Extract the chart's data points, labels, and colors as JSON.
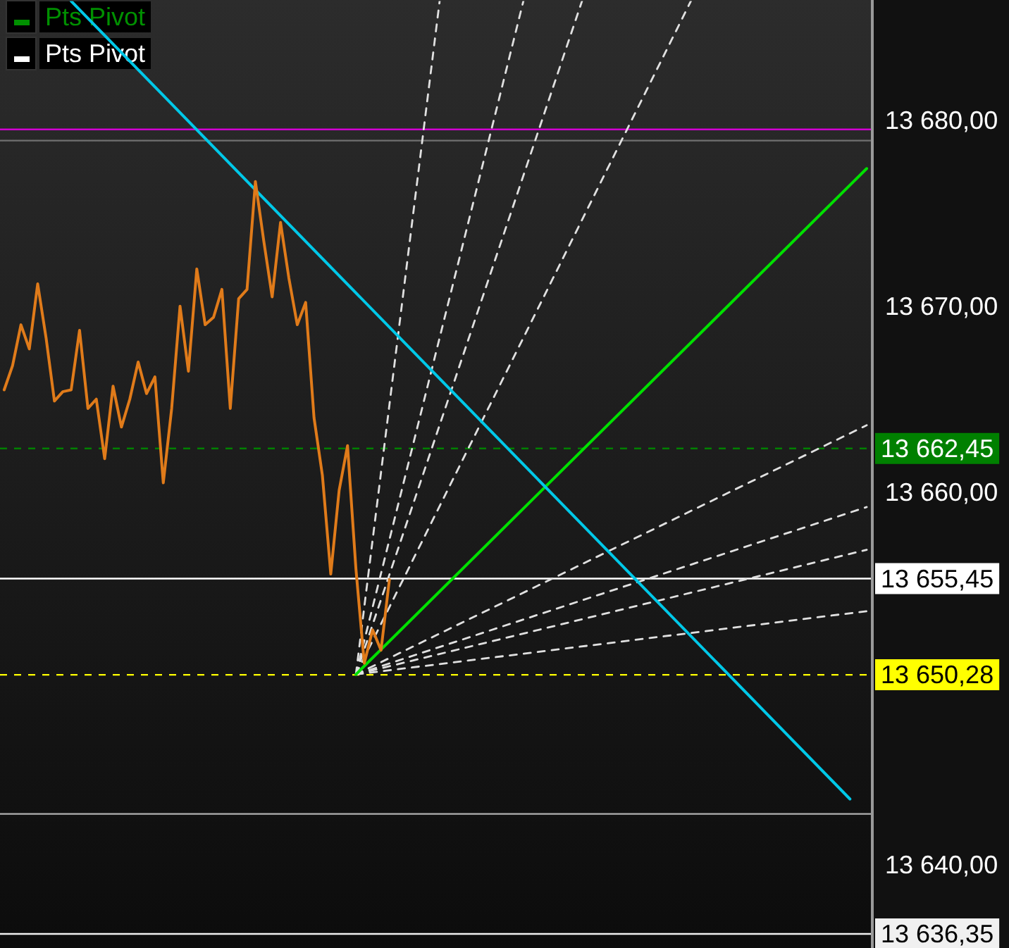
{
  "chart_data": {
    "type": "line",
    "tick_labels": "y",
    "legend": false,
    "grid": false,
    "marker": "none",
    "annotations": [
      "Pts Pivot",
      "Pts Pivot"
    ],
    "categories": [
      null,
      null,
      null,
      null,
      null,
      null,
      null,
      null,
      null,
      null,
      null,
      null,
      null,
      null,
      null,
      null,
      null,
      null,
      null,
      null,
      null,
      null,
      null,
      null,
      null,
      null,
      null,
      null,
      null,
      null,
      null,
      null,
      null,
      null,
      null,
      null,
      null,
      null,
      null,
      null,
      null,
      null,
      null,
      null,
      null,
      null,
      null,
      null,
      null,
      null,
      null,
      null,
      null,
      null,
      null,
      null,
      null,
      null,
      null,
      null,
      null,
      null,
      null,
      null,
      null,
      null,
      null,
      null,
      null,
      null,
      null,
      null,
      null,
      null,
      null,
      null,
      null,
      null,
      null,
      null,
      null,
      null,
      null,
      null,
      null,
      null,
      null,
      null,
      null,
      null,
      null,
      null,
      null,
      null,
      null,
      null,
      null,
      null,
      null,
      null,
      null,
      null,
      null,
      null
    ],
    "ylim": [
      13635.5,
      13686.5
    ],
    "yticks": [
      {
        "value": 13680,
        "label": "13 680,00"
      },
      {
        "value": 13670,
        "label": "13 670,00"
      },
      {
        "value": 13660,
        "label": "13 660,00"
      },
      {
        "value": 13650,
        "label": null
      },
      {
        "value": 13640,
        "label": "13 640,00"
      }
    ],
    "ref_lines": [
      {
        "axis": "y",
        "value": 13679.6,
        "label": null,
        "color": "#d000d0",
        "line_style": "solid"
      },
      {
        "axis": "y",
        "value": 13679.0,
        "label": null,
        "color": "#707070",
        "line_style": "solid"
      },
      {
        "axis": "y",
        "value": 13662.45,
        "label": "13 662,45",
        "color": "#008000",
        "line_style": "dashed"
      },
      {
        "axis": "y",
        "value": 13655.45,
        "label": "13 655,45",
        "color": "#ffffff",
        "line_style": "solid"
      },
      {
        "axis": "y",
        "value": 13650.28,
        "label": "13 650,28",
        "color": "#ffff00",
        "line_style": "dashed"
      },
      {
        "axis": "y",
        "value": 13642.8,
        "label": null,
        "color": "#b0b0b0",
        "line_style": "solid"
      },
      {
        "axis": "y",
        "value": 13636.35,
        "label": "13 636,35",
        "color": "#f0f0f0",
        "line_style": "solid"
      }
    ],
    "series": [
      {
        "color": "#e07b1a",
        "line_style": "solid",
        "values": [
          13665.6,
          13666.9,
          13669.1,
          13667.8,
          13671.3,
          13668.4,
          13665.0,
          13665.5,
          13665.6,
          13668.8,
          13664.6,
          13665.1,
          13661.9,
          13665.8,
          13663.6,
          13665.1,
          13667.1,
          13665.4,
          13666.3,
          13660.6,
          13664.6,
          13670.1,
          13666.6,
          13672.1,
          13669.1,
          13669.5,
          13671.0,
          13664.6,
          13670.5,
          13671.0,
          13676.8,
          13673.6,
          13670.6,
          13674.6,
          13671.6,
          13669.1,
          13670.3,
          13664.1,
          13661.0,
          13655.7,
          13660.2,
          13662.6,
          13656.0,
          13650.9,
          13652.7,
          13651.6,
          13655.4,
          null,
          null,
          null,
          null,
          null,
          null,
          null,
          null,
          null,
          null,
          null,
          null,
          null,
          null,
          null,
          null,
          null,
          null,
          null,
          null,
          null,
          null,
          null,
          null,
          null,
          null,
          null,
          null,
          null,
          null,
          null,
          null,
          null,
          null,
          null,
          null,
          null,
          null,
          null,
          null,
          null,
          null,
          null,
          null,
          null,
          null,
          null,
          null,
          null,
          null,
          null,
          null,
          null,
          null,
          null,
          null,
          null
        ]
      },
      {
        "color": "#00c8e8",
        "line_style": "solid",
        "values": [
          null,
          null,
          null,
          null,
          null,
          null,
          null,
          null,
          13686.5,
          null,
          null,
          null,
          null,
          null,
          null,
          null,
          null,
          null,
          null,
          null,
          null,
          null,
          null,
          null,
          null,
          null,
          null,
          null,
          null,
          null,
          null,
          null,
          null,
          null,
          null,
          null,
          null,
          null,
          null,
          null,
          null,
          null,
          null,
          null,
          null,
          null,
          null,
          null,
          null,
          null,
          null,
          null,
          null,
          null,
          null,
          null,
          null,
          null,
          null,
          null,
          null,
          null,
          null,
          null,
          null,
          null,
          null,
          null,
          null,
          null,
          null,
          null,
          null,
          null,
          null,
          null,
          null,
          null,
          null,
          null,
          null,
          null,
          null,
          null,
          null,
          null,
          null,
          null,
          null,
          null,
          null,
          null,
          null,
          null,
          null,
          null,
          null,
          null,
          null,
          null,
          null,
          13643.6,
          null,
          null
        ]
      },
      {
        "color": "#00e000",
        "line_style": "solid",
        "values": [
          null,
          null,
          null,
          null,
          null,
          null,
          null,
          null,
          null,
          null,
          null,
          null,
          null,
          null,
          null,
          null,
          null,
          null,
          null,
          null,
          null,
          null,
          null,
          null,
          null,
          null,
          null,
          null,
          null,
          null,
          null,
          null,
          null,
          null,
          null,
          null,
          null,
          null,
          null,
          null,
          null,
          null,
          13650.3,
          null,
          null,
          null,
          null,
          null,
          null,
          null,
          null,
          null,
          null,
          null,
          null,
          null,
          null,
          null,
          null,
          null,
          null,
          null,
          null,
          null,
          null,
          null,
          null,
          null,
          null,
          null,
          null,
          null,
          null,
          null,
          null,
          null,
          null,
          null,
          null,
          null,
          null,
          null,
          null,
          null,
          null,
          null,
          null,
          null,
          null,
          null,
          null,
          null,
          null,
          null,
          null,
          null,
          null,
          null,
          null,
          null,
          null,
          null,
          null,
          13677.5
        ]
      },
      {
        "color": "#e0e0e0",
        "line_style": "dashed",
        "values": [
          null,
          null,
          null,
          null,
          null,
          null,
          null,
          null,
          null,
          null,
          null,
          null,
          null,
          null,
          null,
          null,
          null,
          null,
          null,
          null,
          null,
          null,
          null,
          null,
          null,
          null,
          null,
          null,
          null,
          null,
          null,
          null,
          null,
          null,
          null,
          null,
          null,
          null,
          null,
          null,
          null,
          null,
          13650.3,
          null,
          null,
          null,
          null,
          null,
          null,
          null,
          null,
          null,
          13686.5,
          null,
          null,
          null,
          null,
          null,
          null,
          null,
          null,
          null,
          null,
          null,
          null,
          null,
          null,
          null,
          null,
          null,
          null,
          null,
          null,
          null,
          null,
          null,
          null,
          null,
          null,
          null,
          null,
          null,
          null,
          null,
          null,
          null,
          null,
          null,
          null,
          null,
          null,
          null,
          null,
          null,
          null,
          null,
          null,
          null,
          null,
          null,
          null,
          null,
          null,
          null
        ]
      },
      {
        "color": "#e0e0e0",
        "line_style": "dashed",
        "values": [
          null,
          null,
          null,
          null,
          null,
          null,
          null,
          null,
          null,
          null,
          null,
          null,
          null,
          null,
          null,
          null,
          null,
          null,
          null,
          null,
          null,
          null,
          null,
          null,
          null,
          null,
          null,
          null,
          null,
          null,
          null,
          null,
          null,
          null,
          null,
          null,
          null,
          null,
          null,
          null,
          null,
          null,
          13650.3,
          null,
          null,
          null,
          null,
          null,
          null,
          null,
          null,
          null,
          null,
          null,
          null,
          null,
          null,
          null,
          null,
          null,
          null,
          null,
          13686.5,
          null,
          null,
          null,
          null,
          null,
          null,
          null,
          null,
          null,
          null,
          null,
          null,
          null,
          null,
          null,
          null,
          null,
          null,
          null,
          null,
          null,
          null,
          null,
          null,
          null,
          null,
          null,
          null,
          null,
          null,
          null,
          null,
          null,
          null,
          null,
          null,
          null,
          null,
          null,
          null,
          null
        ]
      },
      {
        "color": "#e0e0e0",
        "line_style": "dashed",
        "values": [
          null,
          null,
          null,
          null,
          null,
          null,
          null,
          null,
          null,
          null,
          null,
          null,
          null,
          null,
          null,
          null,
          null,
          null,
          null,
          null,
          null,
          null,
          null,
          null,
          null,
          null,
          null,
          null,
          null,
          null,
          null,
          null,
          null,
          null,
          null,
          null,
          null,
          null,
          null,
          null,
          null,
          null,
          13650.3,
          null,
          null,
          null,
          null,
          null,
          null,
          null,
          null,
          null,
          null,
          null,
          null,
          null,
          null,
          null,
          null,
          null,
          null,
          null,
          null,
          null,
          null,
          null,
          null,
          null,
          null,
          13686.5,
          null,
          null,
          null,
          null,
          null,
          null,
          null,
          null,
          null,
          null,
          null,
          null,
          null,
          null,
          null,
          null,
          null,
          null,
          null,
          null,
          null,
          null,
          null,
          null,
          null,
          null,
          null,
          null,
          null,
          null,
          null,
          null,
          null,
          null
        ]
      },
      {
        "color": "#e0e0e0",
        "line_style": "dashed",
        "values": [
          null,
          null,
          null,
          null,
          null,
          null,
          null,
          null,
          null,
          null,
          null,
          null,
          null,
          null,
          null,
          null,
          null,
          null,
          null,
          null,
          null,
          null,
          null,
          null,
          null,
          null,
          null,
          null,
          null,
          null,
          null,
          null,
          null,
          null,
          null,
          null,
          null,
          null,
          null,
          null,
          null,
          null,
          13650.3,
          null,
          null,
          null,
          null,
          null,
          null,
          null,
          null,
          null,
          null,
          null,
          null,
          null,
          null,
          null,
          null,
          null,
          null,
          null,
          null,
          null,
          null,
          null,
          null,
          null,
          null,
          null,
          null,
          null,
          null,
          null,
          null,
          null,
          null,
          null,
          null,
          null,
          null,
          null,
          13686.5,
          null,
          null,
          null,
          null,
          null,
          null,
          null,
          null,
          null,
          null,
          null,
          null,
          null,
          null,
          null,
          null,
          null,
          null,
          null,
          null,
          null
        ]
      },
      {
        "color": "#e0e0e0",
        "line_style": "dashed",
        "values": [
          null,
          null,
          null,
          null,
          null,
          null,
          null,
          null,
          null,
          null,
          null,
          null,
          null,
          null,
          null,
          null,
          null,
          null,
          null,
          null,
          null,
          null,
          null,
          null,
          null,
          null,
          null,
          null,
          null,
          null,
          null,
          null,
          null,
          null,
          null,
          null,
          null,
          null,
          null,
          null,
          null,
          null,
          13650.3,
          null,
          null,
          null,
          null,
          null,
          null,
          null,
          null,
          null,
          null,
          null,
          null,
          null,
          null,
          null,
          null,
          null,
          null,
          null,
          null,
          null,
          null,
          null,
          null,
          null,
          null,
          null,
          null,
          null,
          null,
          null,
          null,
          null,
          null,
          null,
          null,
          null,
          null,
          null,
          null,
          null,
          null,
          null,
          null,
          null,
          null,
          null,
          null,
          null,
          null,
          null,
          null,
          null,
          null,
          null,
          null,
          null,
          null,
          null,
          null,
          13663.7
        ]
      },
      {
        "color": "#e0e0e0",
        "line_style": "dashed",
        "values": [
          null,
          null,
          null,
          null,
          null,
          null,
          null,
          null,
          null,
          null,
          null,
          null,
          null,
          null,
          null,
          null,
          null,
          null,
          null,
          null,
          null,
          null,
          null,
          null,
          null,
          null,
          null,
          null,
          null,
          null,
          null,
          null,
          null,
          null,
          null,
          null,
          null,
          null,
          null,
          null,
          null,
          null,
          13650.3,
          null,
          null,
          null,
          null,
          null,
          null,
          null,
          null,
          null,
          null,
          null,
          null,
          null,
          null,
          null,
          null,
          null,
          null,
          null,
          null,
          null,
          null,
          null,
          null,
          null,
          null,
          null,
          null,
          null,
          null,
          null,
          null,
          null,
          null,
          null,
          null,
          null,
          null,
          null,
          null,
          null,
          null,
          null,
          null,
          null,
          null,
          null,
          null,
          null,
          null,
          null,
          null,
          null,
          null,
          null,
          null,
          null,
          null,
          null,
          null,
          13659.3
        ]
      },
      {
        "color": "#e0e0e0",
        "line_style": "dashed",
        "values": [
          null,
          null,
          null,
          null,
          null,
          null,
          null,
          null,
          null,
          null,
          null,
          null,
          null,
          null,
          null,
          null,
          null,
          null,
          null,
          null,
          null,
          null,
          null,
          null,
          null,
          null,
          null,
          null,
          null,
          null,
          null,
          null,
          null,
          null,
          null,
          null,
          null,
          null,
          null,
          null,
          null,
          null,
          13650.3,
          null,
          null,
          null,
          null,
          null,
          null,
          null,
          null,
          null,
          null,
          null,
          null,
          null,
          null,
          null,
          null,
          null,
          null,
          null,
          null,
          null,
          null,
          null,
          null,
          null,
          null,
          null,
          null,
          null,
          null,
          null,
          null,
          null,
          null,
          null,
          null,
          null,
          null,
          null,
          null,
          null,
          null,
          null,
          null,
          null,
          null,
          null,
          null,
          null,
          null,
          null,
          null,
          null,
          null,
          null,
          null,
          null,
          null,
          null,
          null,
          13657.0
        ]
      },
      {
        "color": "#e0e0e0",
        "line_style": "dashed",
        "values": [
          null,
          null,
          null,
          null,
          null,
          null,
          null,
          null,
          null,
          null,
          null,
          null,
          null,
          null,
          null,
          null,
          null,
          null,
          null,
          null,
          null,
          null,
          null,
          null,
          null,
          null,
          null,
          null,
          null,
          null,
          null,
          null,
          null,
          null,
          null,
          null,
          null,
          null,
          null,
          null,
          null,
          null,
          13650.3,
          null,
          null,
          null,
          null,
          null,
          null,
          null,
          null,
          null,
          null,
          null,
          null,
          null,
          null,
          null,
          null,
          null,
          null,
          null,
          null,
          null,
          null,
          null,
          null,
          null,
          null,
          null,
          null,
          null,
          null,
          null,
          null,
          null,
          null,
          null,
          null,
          null,
          null,
          null,
          null,
          null,
          null,
          null,
          null,
          null,
          null,
          null,
          null,
          null,
          null,
          null,
          null,
          null,
          null,
          null,
          null,
          null,
          null,
          null,
          null,
          13653.7
        ]
      }
    ]
  }
}
